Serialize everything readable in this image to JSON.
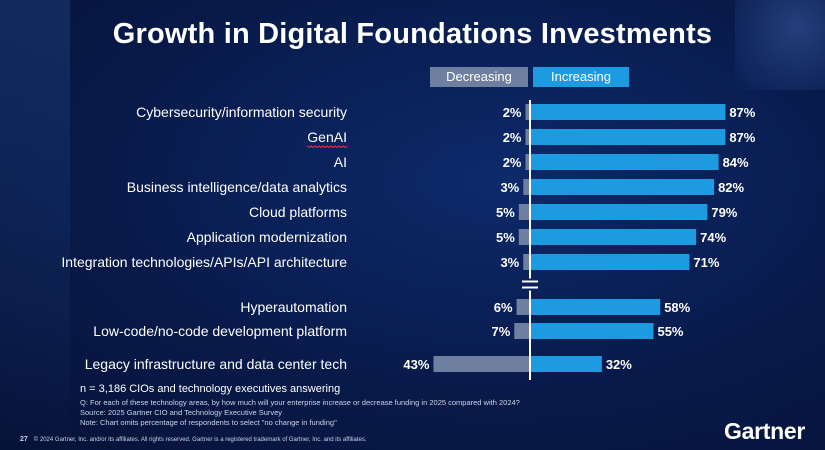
{
  "title": "Growth in Digital Foundations Investments",
  "legend": {
    "decreasing": "Decreasing",
    "increasing": "Increasing"
  },
  "chart_data": {
    "type": "bar",
    "orientation": "horizontal-diverging",
    "categories": [
      "Cybersecurity/information security",
      "GenAI",
      "AI",
      "Business intelligence/data analytics",
      "Cloud platforms",
      "Application modernization",
      "Integration technologies/APIs/API architecture",
      "Hyperautomation",
      "Low-code/no-code development platform",
      "Legacy infrastructure and data center tech"
    ],
    "series": [
      {
        "name": "Decreasing",
        "values": [
          2,
          2,
          2,
          3,
          5,
          5,
          3,
          6,
          7,
          43
        ],
        "labels": [
          "2%",
          "2%",
          "2%",
          "3%",
          "5%",
          "5%",
          "3%",
          "6%",
          "7%",
          "43%"
        ]
      },
      {
        "name": "Increasing",
        "values": [
          87,
          87,
          84,
          82,
          79,
          74,
          71,
          58,
          55,
          32
        ],
        "labels": [
          "87%",
          "87%",
          "84%",
          "82%",
          "79%",
          "74%",
          "71%",
          "58%",
          "55%",
          "32%"
        ]
      }
    ],
    "unit": "%",
    "axis_break_after_index": 6,
    "legend_placement": "top",
    "grid": false,
    "colors": {
      "decreasing": "#6e7fa0",
      "increasing": "#1c9be0",
      "axis": "#ffffff"
    }
  },
  "footer": {
    "sample": "n = 3,186 CIOs and technology executives answering",
    "question": "Q: For each of these technology areas, by how much will your enterprise increase or decrease funding in 2025 compared with 2024?",
    "source": "Source: 2025 Gartner CIO and Technology Executive Survey",
    "note": "Note: Chart omits percentage of respondents to select \"no change in funding\""
  },
  "page_number": "27",
  "copyright": "© 2024 Gartner, Inc. and/or its affiliates. All rights reserved. Gartner is a registered trademark of Gartner, Inc. and its affiliates.",
  "logo": "Gartner"
}
